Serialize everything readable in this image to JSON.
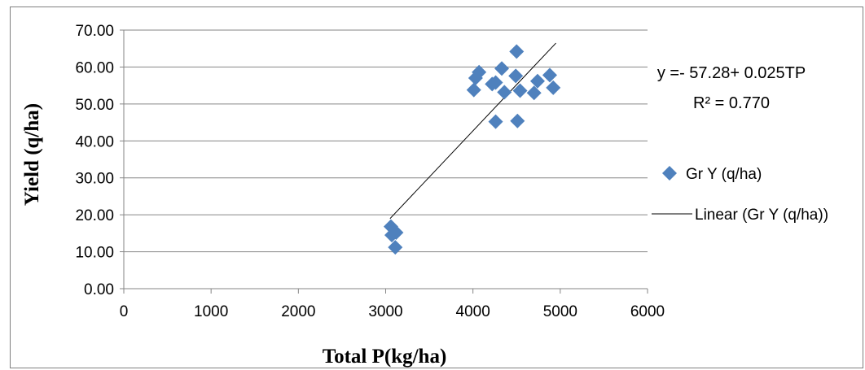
{
  "chart_data": {
    "type": "scatter",
    "xlabel": "Total P(kg/ha)",
    "ylabel": "Yield (q/ha)",
    "xlim": [
      0,
      6000
    ],
    "ylim": [
      0,
      70
    ],
    "x_ticks": [
      "0",
      "1000",
      "2000",
      "3000",
      "4000",
      "5000",
      "6000"
    ],
    "y_ticks": [
      "0.00",
      "10.00",
      "20.00",
      "30.00",
      "40.00",
      "50.00",
      "60.00",
      "70.00"
    ],
    "grid": "horizontal",
    "legend_position": "right",
    "series": [
      {
        "name": "Gr Y (q/ha)",
        "marker": "diamond",
        "color": "#4F81BD",
        "points": [
          {
            "x": 3060,
            "y": 16.8
          },
          {
            "x": 3070,
            "y": 14.5
          },
          {
            "x": 3120,
            "y": 15.2
          },
          {
            "x": 3110,
            "y": 11.2
          },
          {
            "x": 4010,
            "y": 53.8
          },
          {
            "x": 4030,
            "y": 57.0
          },
          {
            "x": 4070,
            "y": 58.6
          },
          {
            "x": 4220,
            "y": 55.4
          },
          {
            "x": 4260,
            "y": 55.8
          },
          {
            "x": 4260,
            "y": 45.2
          },
          {
            "x": 4330,
            "y": 59.6
          },
          {
            "x": 4360,
            "y": 53.2
          },
          {
            "x": 4490,
            "y": 57.6
          },
          {
            "x": 4500,
            "y": 64.2
          },
          {
            "x": 4510,
            "y": 45.4
          },
          {
            "x": 4540,
            "y": 53.6
          },
          {
            "x": 4700,
            "y": 53.0
          },
          {
            "x": 4740,
            "y": 56.2
          },
          {
            "x": 4880,
            "y": 57.8
          },
          {
            "x": 4920,
            "y": 54.4
          }
        ]
      }
    ],
    "trendline": {
      "name": "Linear (Gr Y (q/ha))",
      "color": "#000000",
      "x_start": 3050,
      "x_end": 4950,
      "intercept": -57.28,
      "slope": 0.025
    },
    "annotations": {
      "equation": "y =- 57.28+ 0.025TP",
      "r_squared": "R² = 0.770"
    }
  }
}
